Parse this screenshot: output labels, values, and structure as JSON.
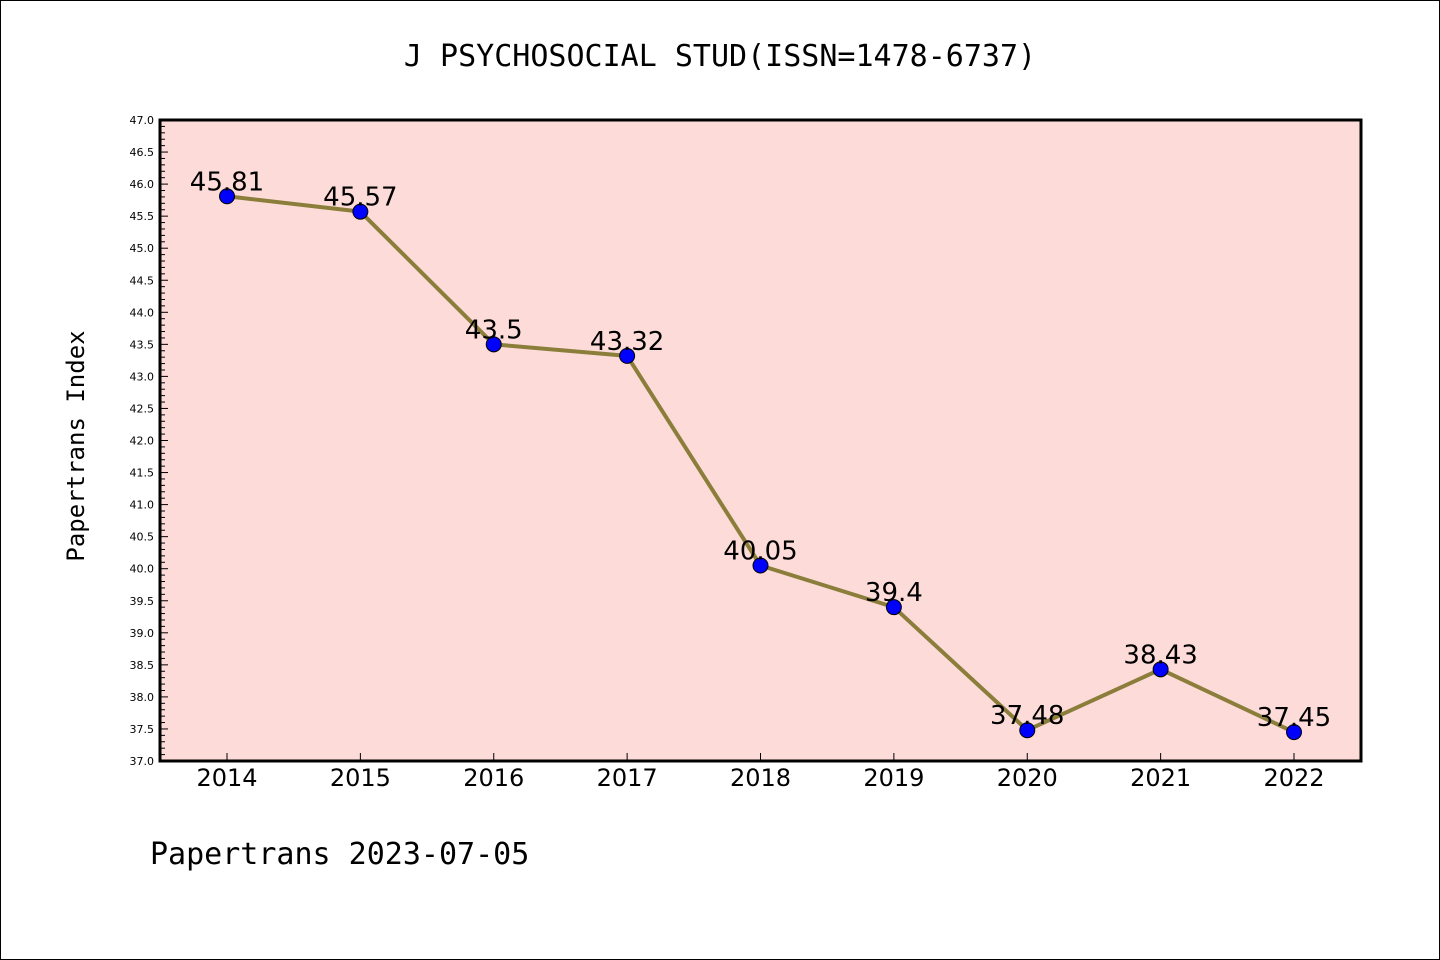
{
  "chart_data": {
    "type": "line",
    "title": "J PSYCHOSOCIAL STUD(ISSN=1478-6737)",
    "xlabel": "",
    "ylabel": "Papertrans Index",
    "categories": [
      "2014",
      "2015",
      "2016",
      "2017",
      "2018",
      "2019",
      "2020",
      "2021",
      "2022"
    ],
    "values": [
      45.81,
      45.57,
      43.5,
      43.32,
      40.05,
      39.4,
      37.48,
      38.43,
      37.45
    ],
    "data_labels": [
      "45.81",
      "45.57",
      "43.5",
      "43.32",
      "40.05",
      "39.4",
      "37.48",
      "38.43",
      "37.45"
    ],
    "ylim": [
      37.0,
      47.0
    ],
    "yticks": [
      "37.0",
      "37.5",
      "38.0",
      "38.5",
      "39.0",
      "39.5",
      "40.0",
      "40.5",
      "41.0",
      "41.5",
      "42.0",
      "42.5",
      "43.0",
      "43.5",
      "44.0",
      "44.5",
      "45.0",
      "45.5",
      "46.0",
      "46.5",
      "47.0"
    ],
    "grid": false,
    "colors": {
      "plot_background": "#fddbd8",
      "line": "#8b7d3a",
      "marker": "#0000ff"
    }
  },
  "footer": "Papertrans 2023-07-05"
}
